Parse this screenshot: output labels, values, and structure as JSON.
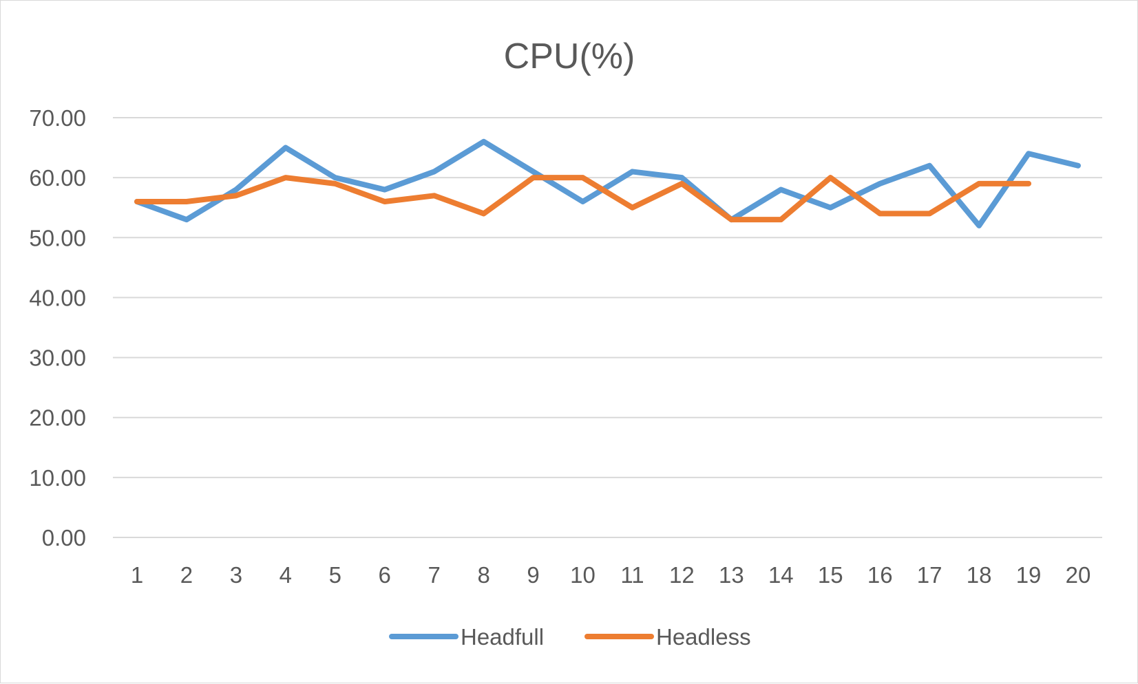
{
  "chart_data": {
    "type": "line",
    "title": "CPU(%)",
    "xlabel": "",
    "ylabel": "",
    "categories": [
      "1",
      "2",
      "3",
      "4",
      "5",
      "6",
      "7",
      "8",
      "9",
      "10",
      "11",
      "12",
      "13",
      "14",
      "15",
      "16",
      "17",
      "18",
      "19",
      "20"
    ],
    "y_tick_labels": [
      "0.00",
      "10.00",
      "20.00",
      "30.00",
      "40.00",
      "50.00",
      "60.00",
      "70.00"
    ],
    "ylim": [
      0,
      70
    ],
    "y_step": 10,
    "grid": true,
    "legend_position": "bottom",
    "series": [
      {
        "name": "Headfull",
        "color": "#5b9bd5",
        "values": [
          56,
          53,
          58,
          65,
          60,
          58,
          61,
          66,
          61,
          56,
          61,
          60,
          53,
          58,
          55,
          59,
          62,
          52,
          64,
          62
        ]
      },
      {
        "name": "Headless",
        "color": "#ed7d31",
        "values": [
          56,
          56,
          57,
          60,
          59,
          56,
          57,
          54,
          60,
          60,
          55,
          59,
          53,
          53,
          60,
          54,
          54,
          59,
          59,
          null
        ]
      }
    ]
  }
}
